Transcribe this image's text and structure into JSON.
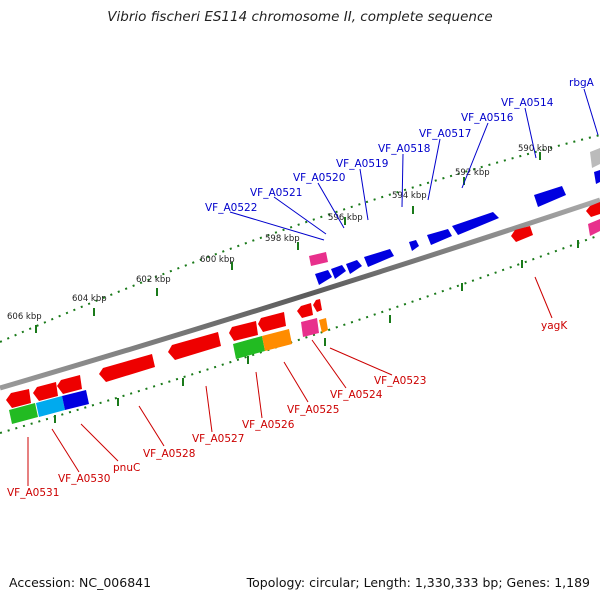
{
  "title": "Vibrio fischeri ES114 chromosome II, complete sequence",
  "footer": {
    "accession": "Accession: NC_006841",
    "summary": "Topology: circular; Length: 1,330,333 bp; Genes: 1,189"
  },
  "kbp_labels": [
    "590 kbp",
    "592 kbp",
    "594 kbp",
    "596 kbp",
    "598 kbp",
    "600 kbp",
    "602 kbp",
    "604 kbp",
    "606 kbp"
  ],
  "top_strand_genes": [
    "rbgA",
    "VF_A0514",
    "VF_A0516",
    "VF_A0517",
    "VF_A0518",
    "VF_A0519",
    "VF_A0520",
    "VF_A0521",
    "VF_A0522"
  ],
  "bottom_strand_genes": [
    "yagK",
    "VF_A0523",
    "VF_A0524",
    "VF_A0525",
    "VF_A0526",
    "VF_A0527",
    "VF_A0528",
    "pnuC",
    "VF_A0530",
    "VF_A0531"
  ],
  "colors": {
    "forward_features": "#0000e0",
    "reverse_features": "#ee0000",
    "backbone": "#777777",
    "ruler_ticks": "#1a7a1a",
    "top_labels": "#0000cc",
    "bottom_labels": "#cc0000"
  }
}
